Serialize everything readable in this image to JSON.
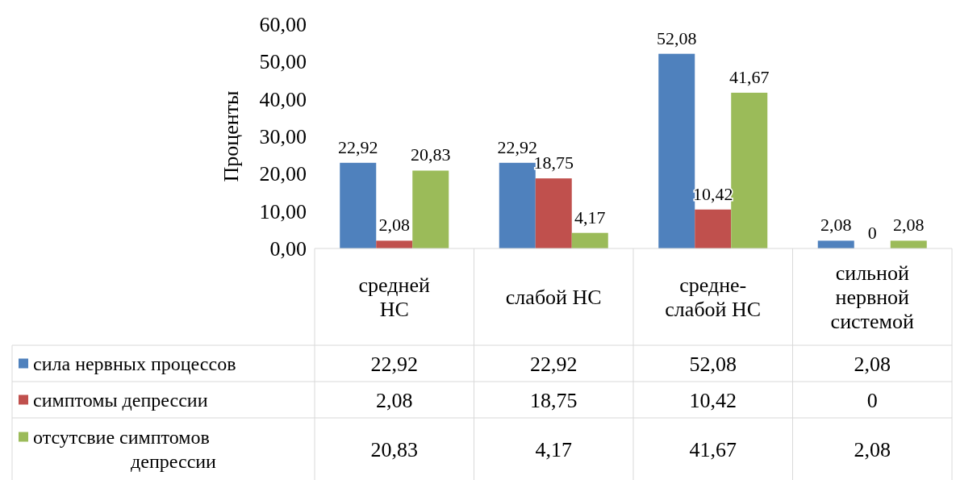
{
  "chart_data": {
    "type": "bar",
    "ylabel": "Проценты",
    "categories": [
      "средней НС",
      "слабой НС",
      "средне-слабой НС",
      "сильной нервной системой"
    ],
    "series": [
      {
        "name": "сила нервных процессов",
        "color": "#4f81bd",
        "values": [
          22.92,
          22.92,
          52.08,
          2.08
        ],
        "value_labels": [
          "22,92",
          "22,92",
          "52,08",
          "2,08"
        ]
      },
      {
        "name": "симптомы депрессии",
        "color": "#c0504d",
        "values": [
          2.08,
          18.75,
          10.42,
          0
        ],
        "value_labels": [
          "2,08",
          "18,75",
          "10,42",
          "0"
        ]
      },
      {
        "name": "отсутсвие симптомов депрессии",
        "color": "#9bbb59",
        "values": [
          20.83,
          4.17,
          41.67,
          2.08
        ],
        "value_labels": [
          "20,83",
          "4,17",
          "41,67",
          "2,08"
        ]
      }
    ],
    "ylim": [
      0,
      60
    ],
    "yticks": [
      {
        "value": 0,
        "label": "0,00"
      },
      {
        "value": 10,
        "label": "10,00"
      },
      {
        "value": 20,
        "label": "20,00"
      },
      {
        "value": 30,
        "label": "30,00"
      },
      {
        "value": 40,
        "label": "40,00"
      },
      {
        "value": 50,
        "label": "50,00"
      },
      {
        "value": 60,
        "label": "60,00"
      }
    ],
    "grid": false,
    "legend": "bottom"
  }
}
